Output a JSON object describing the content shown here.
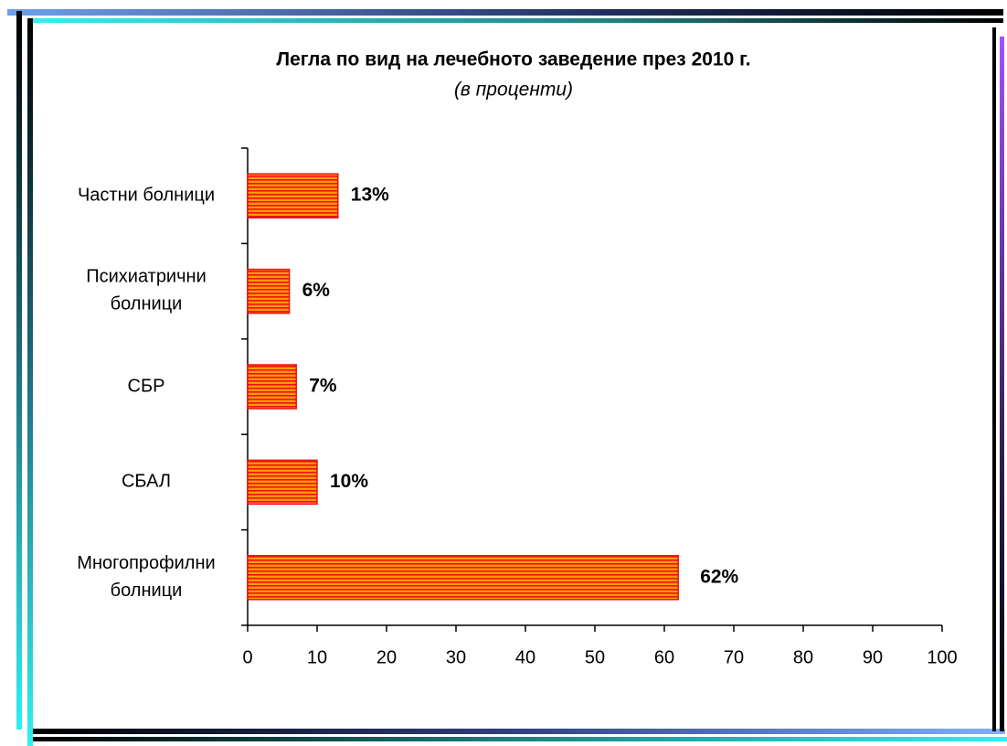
{
  "chart_data": {
    "type": "barh",
    "title": "Легла по вид на лечебното заведение през 2010 г.",
    "subtitle": "(в проценти)",
    "categories": [
      "Частни болници",
      "Психиатрични\nболници",
      "СБР",
      "СБАЛ",
      "Многопрофилни\nболници"
    ],
    "values": [
      13,
      6,
      7,
      10,
      62
    ],
    "value_labels": [
      "13%",
      "6%",
      "7%",
      "10%",
      "62%"
    ],
    "color": "#ff9900",
    "stripe_color": "#ee1111",
    "xlim": [
      0,
      100
    ],
    "xticks": [
      0,
      10,
      20,
      30,
      40,
      50,
      60,
      70,
      80,
      90,
      100
    ],
    "grid": false
  }
}
